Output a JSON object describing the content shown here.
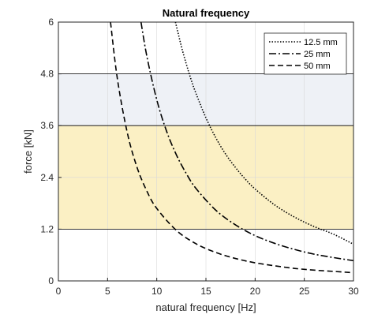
{
  "chart_data": {
    "type": "line",
    "title": "Natural frequency",
    "xlabel": "natural frequency [Hz]",
    "ylabel": "force [kN]",
    "xlim": [
      0,
      30
    ],
    "ylim": [
      0,
      6
    ],
    "xticks": [
      0,
      5,
      10,
      15,
      20,
      25,
      30
    ],
    "xtick_labels": [
      "0",
      "5",
      "10",
      "15",
      "20",
      "25",
      "30"
    ],
    "yticks": [
      0,
      1.2,
      2.4,
      3.6,
      4.8,
      6
    ],
    "ytick_labels": [
      "0",
      "1.2",
      "2.4",
      "3.6",
      "4.8",
      "6"
    ],
    "grid": true,
    "legend_position": "top-right",
    "bands": [
      {
        "y_from": 3.6,
        "y_to": 4.8,
        "color": "#eef1f6"
      },
      {
        "y_from": 1.2,
        "y_to": 3.6,
        "color": "#fbf0c4"
      }
    ],
    "series": [
      {
        "name": "12.5 mm",
        "style": "dotted",
        "x": [
          11.9,
          12.5,
          13,
          13.5,
          14,
          15,
          16,
          17,
          18,
          19,
          20,
          22,
          24,
          26,
          28,
          30
        ],
        "y": [
          6.0,
          5.44,
          5.03,
          4.66,
          4.34,
          3.78,
          3.32,
          2.94,
          2.63,
          2.36,
          2.13,
          1.76,
          1.48,
          1.26,
          1.08,
          0.85
        ]
      },
      {
        "name": "25 mm",
        "style": "dashdot",
        "x": [
          8.4,
          9,
          10,
          11,
          12,
          13,
          14,
          16,
          18,
          20,
          22,
          24,
          26,
          28,
          30
        ],
        "y": [
          6.0,
          5.2,
          4.2,
          3.47,
          2.92,
          2.49,
          2.14,
          1.64,
          1.3,
          1.05,
          0.87,
          0.73,
          0.62,
          0.54,
          0.47
        ]
      },
      {
        "name": "50 mm",
        "style": "dashed",
        "x": [
          5.3,
          6,
          7,
          8,
          9,
          10,
          12,
          14,
          16,
          18,
          20,
          22,
          24,
          26,
          28,
          30
        ],
        "y": [
          6.0,
          4.68,
          3.44,
          2.63,
          2.08,
          1.68,
          1.17,
          0.86,
          0.66,
          0.52,
          0.42,
          0.35,
          0.29,
          0.25,
          0.22,
          0.19
        ]
      }
    ]
  }
}
